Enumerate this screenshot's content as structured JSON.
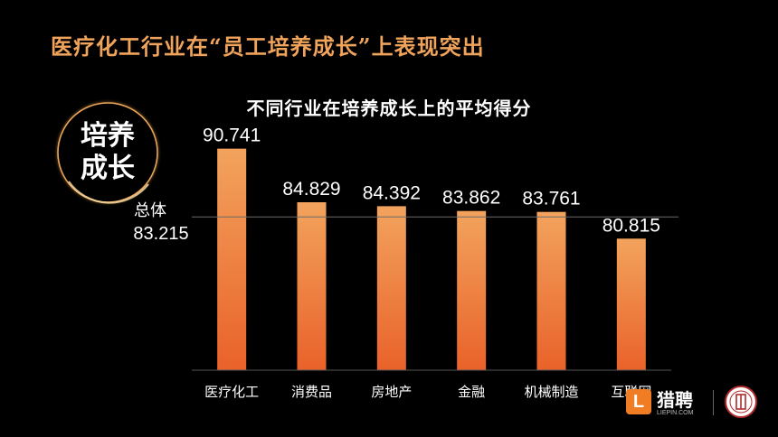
{
  "headline": "医疗化工行业在“员工培养成长”上表现突出",
  "badge": {
    "line1": "培养",
    "line2": "成长"
  },
  "brand": {
    "logo_letter": "L",
    "name": "猎聘",
    "url": "LIEPIN.COM"
  },
  "colors": {
    "accent": "#f0a35a",
    "bar_top": "#f2a35d",
    "bar_bottom": "#e9622a"
  },
  "chart_data": {
    "type": "bar",
    "title": "不同行业在培养成长上的平均得分",
    "categories": [
      "医疗化工",
      "消费品",
      "房地产",
      "金融",
      "机械制造",
      "互联网"
    ],
    "values": [
      90.741,
      84.829,
      84.392,
      83.862,
      83.761,
      80.815
    ],
    "value_labels": [
      "90.741",
      "84.829",
      "84.392",
      "83.862",
      "83.761",
      "80.815"
    ],
    "reference_line": {
      "label": "总体",
      "value": 83.215,
      "value_label": "83.215"
    },
    "ylim": [
      66.3,
      92
    ],
    "xlabel": "",
    "ylabel": "",
    "grid": false,
    "legend": "none"
  }
}
